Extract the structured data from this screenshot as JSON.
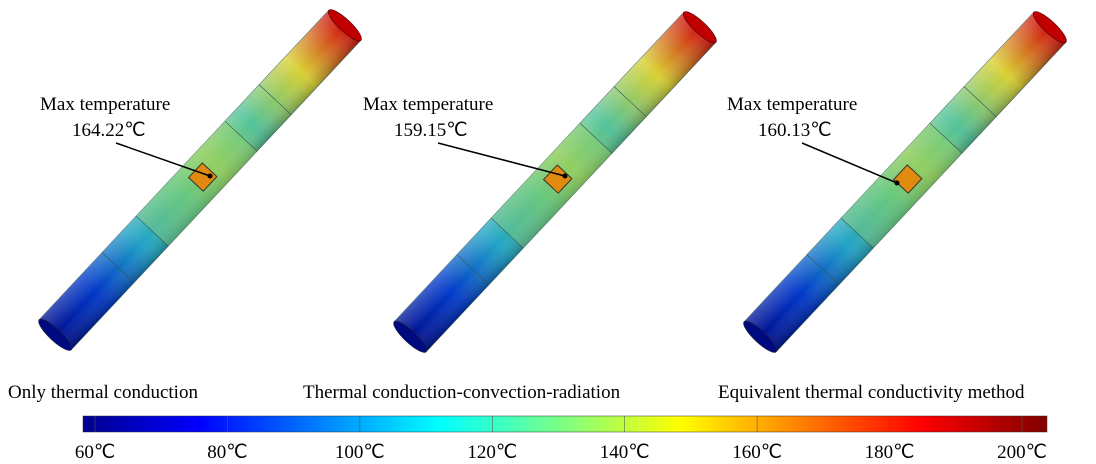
{
  "panels": [
    {
      "annotation": "Max temperature",
      "max_value": "164.22℃",
      "caption": "Only thermal conduction"
    },
    {
      "annotation": "Max temperature",
      "max_value": "159.15℃",
      "caption": "Thermal conduction-convection-radiation"
    },
    {
      "annotation": "Max temperature",
      "max_value": "160.13℃",
      "caption": "Equivalent thermal conductivity method"
    }
  ],
  "colorbar": {
    "ticks": [
      "60℃",
      "80℃",
      "100℃",
      "120℃",
      "140℃",
      "160℃",
      "180℃",
      "200℃"
    ]
  }
}
